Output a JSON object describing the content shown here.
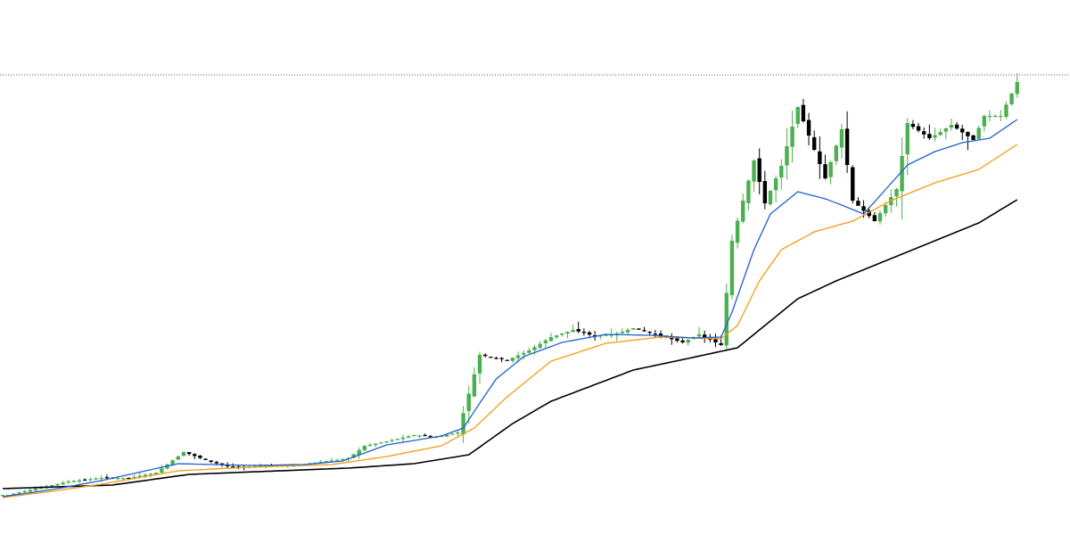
{
  "chart_data": {
    "type": "candlestick",
    "title": "",
    "xlabel": "",
    "ylabel": "",
    "grid": false,
    "legend": "none",
    "ylim": [
      0,
      600
    ],
    "colors": {
      "up": "#4caf50",
      "down": "#000000",
      "ma_fast": "#2060d0",
      "ma_mid": "#f39c12",
      "ma_slow": "#000000",
      "price_line": "#555555"
    },
    "price_line": 516,
    "anchors": {
      "close": [
        [
          1,
          45
        ],
        [
          6,
          52
        ],
        [
          12,
          60
        ],
        [
          18,
          64
        ],
        [
          23,
          64
        ],
        [
          28,
          70
        ],
        [
          33,
          93
        ],
        [
          38,
          82
        ],
        [
          41,
          77
        ],
        [
          44,
          76
        ],
        [
          47,
          78
        ],
        [
          53,
          78
        ],
        [
          58,
          82
        ],
        [
          63,
          86
        ],
        [
          66,
          100
        ],
        [
          70,
          105
        ],
        [
          75,
          112
        ],
        [
          79,
          110
        ],
        [
          83,
          115
        ],
        [
          87,
          202
        ],
        [
          92,
          196
        ],
        [
          96,
          207
        ],
        [
          100,
          222
        ],
        [
          104,
          230
        ],
        [
          108,
          223
        ],
        [
          112,
          226
        ],
        [
          115,
          232
        ],
        [
          119,
          225
        ],
        [
          124,
          216
        ],
        [
          127,
          225
        ],
        [
          131,
          213
        ],
        [
          133,
          330
        ],
        [
          137,
          420
        ],
        [
          139,
          372
        ],
        [
          142,
          414
        ],
        [
          145,
          480
        ],
        [
          150,
          400
        ],
        [
          153,
          455
        ],
        [
          155,
          375
        ],
        [
          159,
          352
        ],
        [
          163,
          388
        ],
        [
          165,
          462
        ],
        [
          169,
          445
        ],
        [
          171,
          452
        ],
        [
          173,
          460
        ],
        [
          177,
          443
        ],
        [
          179,
          470
        ],
        [
          182,
          470
        ],
        [
          185,
          508
        ]
      ],
      "ma_fast": [
        [
          0,
          43
        ],
        [
          9,
          51
        ],
        [
          18,
          61
        ],
        [
          32,
          80
        ],
        [
          45,
          78
        ],
        [
          55,
          79
        ],
        [
          62,
          83
        ],
        [
          70,
          101
        ],
        [
          80,
          111
        ],
        [
          84,
          120
        ],
        [
          87,
          148
        ],
        [
          90,
          175
        ],
        [
          95,
          200
        ],
        [
          102,
          216
        ],
        [
          110,
          225
        ],
        [
          118,
          224
        ],
        [
          126,
          221
        ],
        [
          131,
          222
        ],
        [
          133,
          250
        ],
        [
          137,
          320
        ],
        [
          140,
          360
        ],
        [
          145,
          385
        ],
        [
          150,
          377
        ],
        [
          153,
          370
        ],
        [
          157,
          360
        ],
        [
          165,
          415
        ],
        [
          170,
          430
        ],
        [
          175,
          440
        ],
        [
          180,
          445
        ],
        [
          185,
          466
        ]
      ],
      "ma_mid": [
        [
          0,
          42
        ],
        [
          9,
          49
        ],
        [
          18,
          57
        ],
        [
          32,
          72
        ],
        [
          45,
          76
        ],
        [
          60,
          79
        ],
        [
          70,
          88
        ],
        [
          80,
          100
        ],
        [
          86,
          120
        ],
        [
          92,
          155
        ],
        [
          100,
          195
        ],
        [
          110,
          215
        ],
        [
          120,
          222
        ],
        [
          131,
          220
        ],
        [
          134,
          235
        ],
        [
          138,
          285
        ],
        [
          142,
          320
        ],
        [
          148,
          340
        ],
        [
          155,
          352
        ],
        [
          162,
          375
        ],
        [
          170,
          395
        ],
        [
          178,
          410
        ],
        [
          185,
          438
        ]
      ],
      "ma_slow": [
        [
          0,
          52
        ],
        [
          20,
          56
        ],
        [
          34,
          68
        ],
        [
          63,
          75
        ],
        [
          75,
          80
        ],
        [
          85,
          90
        ],
        [
          93,
          125
        ],
        [
          100,
          150
        ],
        [
          115,
          185
        ],
        [
          125,
          198
        ],
        [
          134,
          210
        ],
        [
          140,
          240
        ],
        [
          145,
          265
        ],
        [
          152,
          285
        ],
        [
          160,
          305
        ],
        [
          170,
          330
        ],
        [
          178,
          350
        ],
        [
          185,
          376
        ]
      ]
    },
    "range": {
      "start": 0,
      "end": 185
    }
  }
}
